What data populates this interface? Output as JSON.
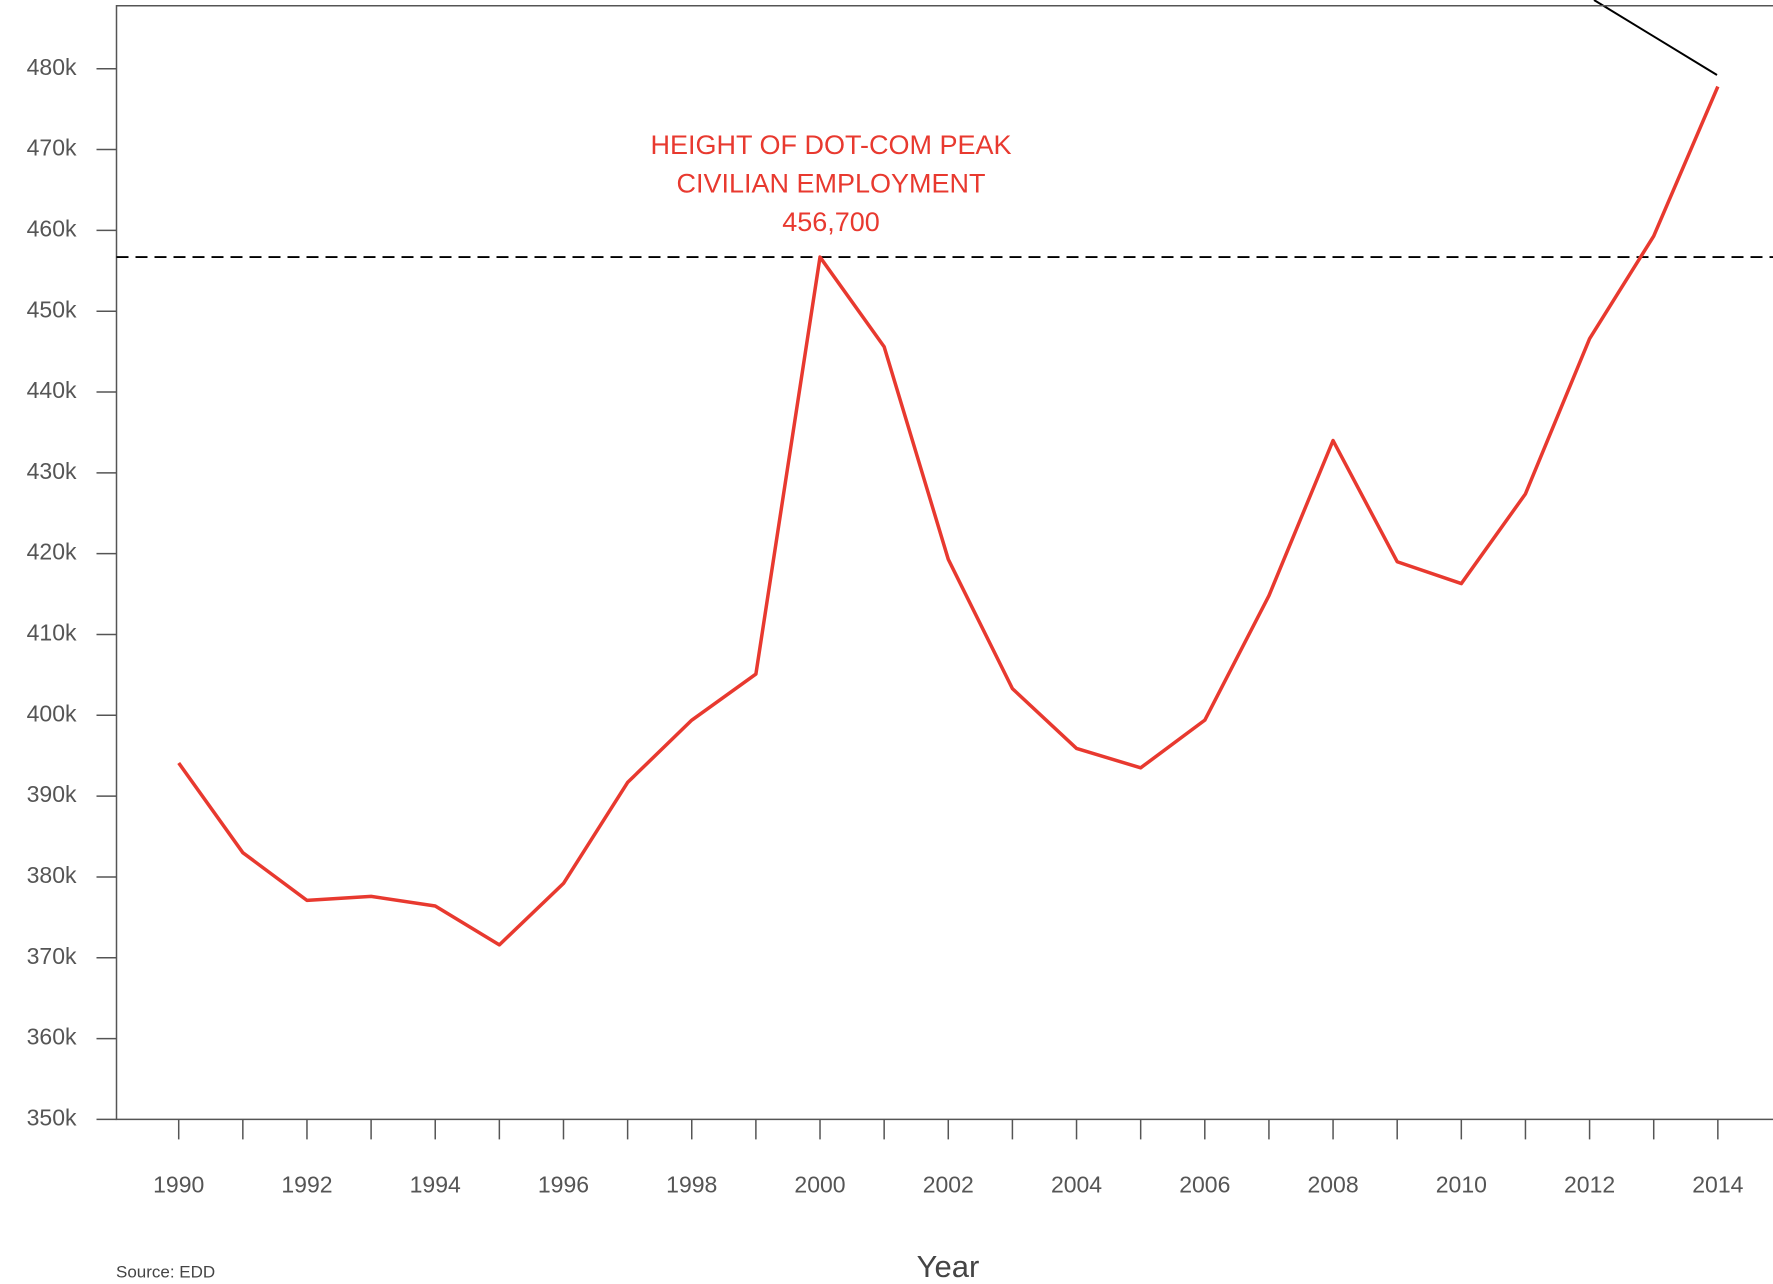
{
  "chart_data": {
    "type": "line",
    "x": [
      1990,
      1991,
      1992,
      1993,
      1994,
      1995,
      1996,
      1997,
      1998,
      1999,
      2000,
      2001,
      2002,
      2003,
      2004,
      2005,
      2006,
      2007,
      2008,
      2009,
      2010,
      2011,
      2012,
      2013,
      2014
    ],
    "values": [
      394100,
      383000,
      377100,
      377600,
      376400,
      371600,
      379200,
      391700,
      399400,
      405100,
      456700,
      445600,
      419300,
      403300,
      395900,
      393500,
      399400,
      414800,
      434000,
      419000,
      416300,
      427400,
      446600,
      459300,
      477800
    ],
    "color": "#e8392f",
    "xlabel": "Year",
    "source": "Source: EDD",
    "xlim": [
      1989.03,
      2014.86
    ],
    "ylim": [
      350000,
      487800
    ],
    "xticks": [
      1990,
      1992,
      1994,
      1996,
      1998,
      2000,
      2002,
      2004,
      2006,
      2008,
      2010,
      2012,
      2014
    ],
    "yticks": [
      {
        "value": 350000,
        "label": "350k"
      },
      {
        "value": 360000,
        "label": "360k"
      },
      {
        "value": 370000,
        "label": "370k"
      },
      {
        "value": 380000,
        "label": "380k"
      },
      {
        "value": 390000,
        "label": "390k"
      },
      {
        "value": 400000,
        "label": "400k"
      },
      {
        "value": 410000,
        "label": "410k"
      },
      {
        "value": 420000,
        "label": "420k"
      },
      {
        "value": 430000,
        "label": "430k"
      },
      {
        "value": 440000,
        "label": "440k"
      },
      {
        "value": 450000,
        "label": "450k"
      },
      {
        "value": 460000,
        "label": "460k"
      },
      {
        "value": 470000,
        "label": "470k"
      },
      {
        "value": 480000,
        "label": "480k"
      }
    ],
    "reference_line": {
      "value": 456700,
      "annotation": [
        "HEIGHT OF DOT-COM PEAK",
        "CIVILIAN EMPLOYMENT",
        "456,700"
      ]
    }
  }
}
